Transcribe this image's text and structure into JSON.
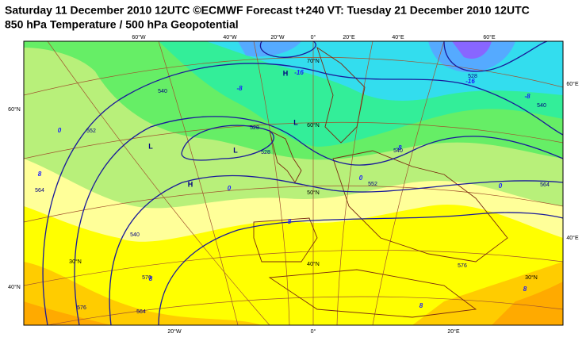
{
  "header": {
    "title": "Saturday 11 December 2010 12UTC ©ECMWF Forecast t+240 VT: Tuesday 21 December 2010 12UTC",
    "subtitle": "850 hPa Temperature / 500 hPa Geopotential"
  },
  "graticule_labels": [
    "60°W",
    "40°W",
    "20°W",
    "0°",
    "20°E",
    "40°E",
    "60°E",
    "20°W",
    "0°",
    "20°E",
    "60°N",
    "40°N",
    "60°E",
    "40°E",
    "70°N",
    "60°N",
    "50°N",
    "40°N",
    "30°N",
    "30°N"
  ],
  "isotherm_labels": [
    "-16",
    "-16",
    "-8",
    "-8",
    "-8",
    "0",
    "0",
    "0",
    "0",
    "8",
    "8",
    "8",
    "8",
    "8"
  ],
  "geopotential_labels": [
    "540",
    "528",
    "528",
    "552",
    "564",
    "540",
    "552",
    "540",
    "528",
    "540",
    "564",
    "576",
    "564",
    "576",
    "576"
  ],
  "pressure_centers": [
    "H",
    "L",
    "L",
    "L",
    "H"
  ]
}
